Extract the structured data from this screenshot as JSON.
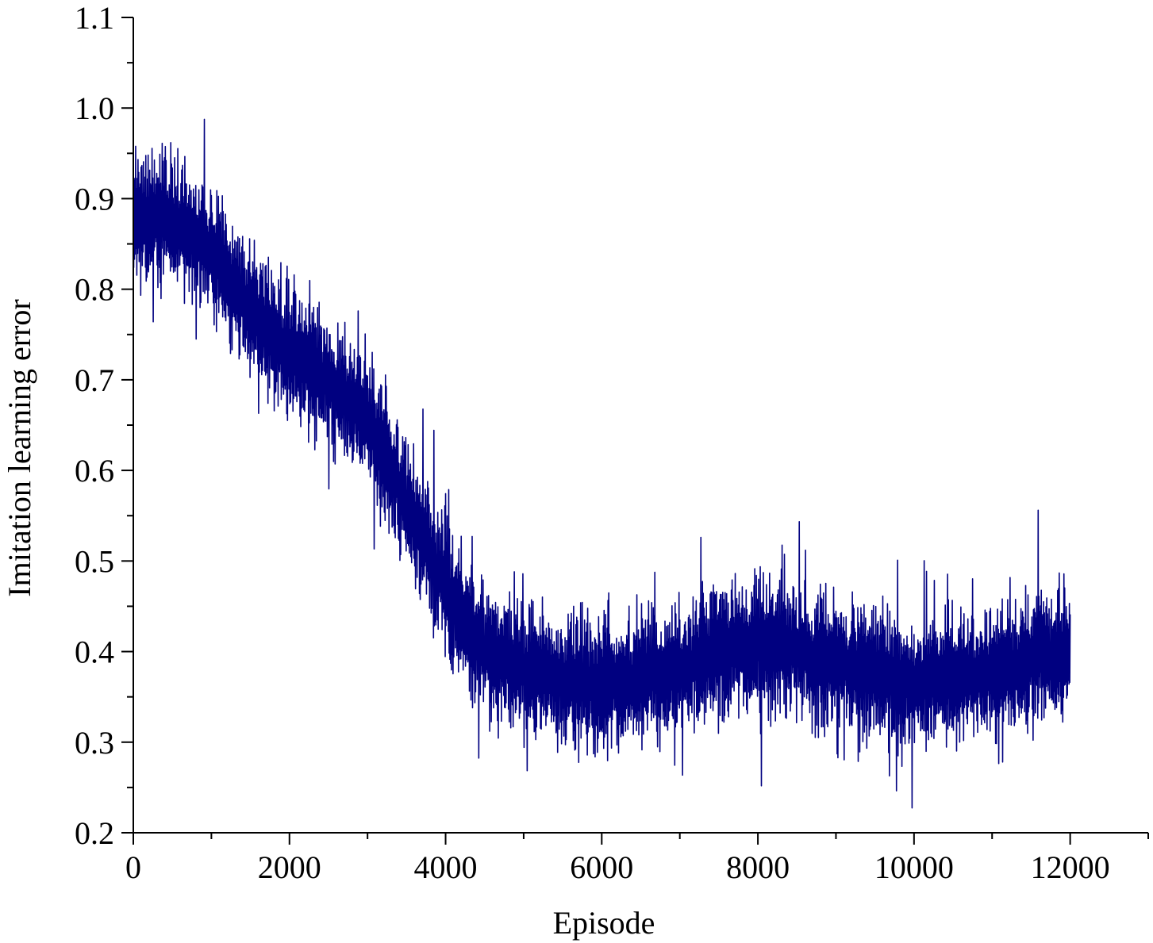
{
  "chart_data": {
    "type": "line",
    "title": "",
    "xlabel": "Episode",
    "ylabel": "Imitation learning error",
    "xlim": [
      0,
      13000
    ],
    "ylim": [
      0.2,
      1.1
    ],
    "x_ticks": [
      0,
      2000,
      4000,
      6000,
      8000,
      10000,
      12000
    ],
    "x_tick_labels": [
      "0",
      "2000",
      "4000",
      "6000",
      "8000",
      "10000",
      "12000"
    ],
    "x_minor_step": 1000,
    "y_ticks": [
      0.2,
      0.3,
      0.4,
      0.5,
      0.6,
      0.7,
      0.8,
      0.9,
      1.0,
      1.1
    ],
    "y_tick_labels": [
      "0.2",
      "0.3",
      "0.4",
      "0.5",
      "0.6",
      "0.7",
      "0.8",
      "0.9",
      "1.0",
      "1.1"
    ],
    "y_minor_step": 0.05,
    "grid": false,
    "legend": "none",
    "series": [
      {
        "color": "#000080",
        "noise_band": 0.11,
        "x": [
          0,
          500,
          1000,
          1500,
          2000,
          2500,
          3000,
          3500,
          4000,
          4500,
          5000,
          5500,
          6000,
          6500,
          7000,
          7500,
          8000,
          8500,
          9000,
          9500,
          10000,
          10500,
          11000,
          11500,
          12000
        ],
        "values": [
          0.88,
          0.88,
          0.84,
          0.78,
          0.73,
          0.7,
          0.66,
          0.56,
          0.47,
          0.4,
          0.38,
          0.37,
          0.365,
          0.37,
          0.38,
          0.4,
          0.41,
          0.4,
          0.39,
          0.375,
          0.365,
          0.37,
          0.38,
          0.39,
          0.4
        ]
      }
    ]
  }
}
